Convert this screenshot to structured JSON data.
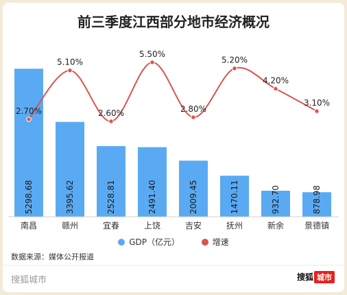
{
  "title": "前三季度江西部分地市经济概况",
  "legend": {
    "gdp": "GDP（亿元）",
    "growth": "增速"
  },
  "source": "数据来源：媒体公开报道",
  "footer": {
    "brand": "搜狐城市",
    "logo_text": "搜狐",
    "logo_badge": "城市"
  },
  "colors": {
    "bar": "#5aaaf3",
    "line": "#d9534f",
    "background": "#f3ead8"
  },
  "chart_data": {
    "type": "bar",
    "categories": [
      "南昌",
      "赣州",
      "宜春",
      "上饶",
      "吉安",
      "抚州",
      "新余",
      "景德镇"
    ],
    "series": [
      {
        "name": "GDP（亿元）",
        "type": "bar",
        "values": [
          5298.68,
          3395.62,
          2528.81,
          2491.4,
          2009.45,
          1470.11,
          932.7,
          878.98
        ],
        "labels": [
          "5298.68",
          "3395.62",
          "2528.81",
          "2491.40",
          "2009.45",
          "1470.11",
          "932.70",
          "878.98"
        ]
      },
      {
        "name": "增速",
        "type": "line",
        "values": [
          2.7,
          5.1,
          2.6,
          5.5,
          2.8,
          5.2,
          4.2,
          3.1
        ],
        "labels": [
          "2.70%",
          "5.10%",
          "2.60%",
          "5.50%",
          "2.80%",
          "5.20%",
          "4.20%",
          "3.10%"
        ]
      }
    ],
    "ylim_gdp": [
      0,
      5500
    ],
    "ylim_growth": [
      0,
      6
    ],
    "grid": false,
    "legend_position": "bottom"
  }
}
